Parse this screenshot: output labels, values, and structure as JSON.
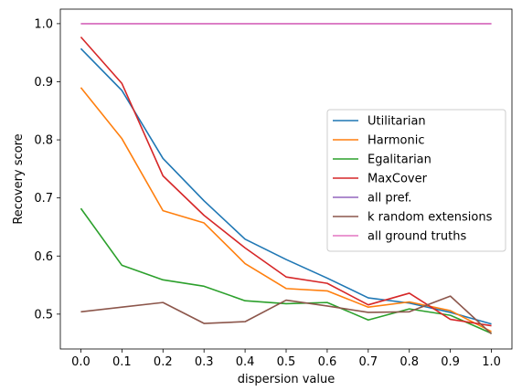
{
  "chart_data": {
    "type": "line",
    "xlabel": "dispersion value",
    "ylabel": "Recovery score",
    "xlim": [
      -0.05,
      1.05
    ],
    "ylim": [
      0.44,
      1.025
    ],
    "x": [
      0.0,
      0.1,
      0.2,
      0.3,
      0.4,
      0.5,
      0.6,
      0.7,
      0.8,
      0.9,
      1.0
    ],
    "x_tick_labels": [
      "0.0",
      "0.1",
      "0.2",
      "0.3",
      "0.4",
      "0.5",
      "0.6",
      "0.7",
      "0.8",
      "0.9",
      "1.0"
    ],
    "y_ticks": [
      0.5,
      0.6,
      0.7,
      0.8,
      0.9,
      1.0
    ],
    "y_tick_labels": [
      "0.5",
      "0.6",
      "0.7",
      "0.8",
      "0.9",
      "1.0"
    ],
    "grid": false,
    "legend_position": "center-right",
    "series": [
      {
        "name": "Utilitarian",
        "color": "#1f77b4",
        "values": [
          0.957,
          0.885,
          0.768,
          0.695,
          0.629,
          0.594,
          0.562,
          0.528,
          0.519,
          0.503,
          0.483
        ]
      },
      {
        "name": "Harmonic",
        "color": "#ff7f0e",
        "values": [
          0.89,
          0.802,
          0.678,
          0.657,
          0.587,
          0.544,
          0.54,
          0.512,
          0.521,
          0.506,
          0.47
        ]
      },
      {
        "name": "Egalitarian",
        "color": "#2ca02c",
        "values": [
          0.682,
          0.584,
          0.559,
          0.548,
          0.523,
          0.518,
          0.52,
          0.49,
          0.509,
          0.498,
          0.467
        ]
      },
      {
        "name": "MaxCover",
        "color": "#d62728",
        "values": [
          0.977,
          0.897,
          0.738,
          0.67,
          0.614,
          0.564,
          0.553,
          0.516,
          0.536,
          0.491,
          0.48
        ]
      },
      {
        "name": "all pref.",
        "color": "#9467bd",
        "values": [
          1.0,
          1.0,
          1.0,
          1.0,
          1.0,
          1.0,
          1.0,
          1.0,
          1.0,
          1.0,
          1.0
        ]
      },
      {
        "name": "k random extensions",
        "color": "#8c564b",
        "values": [
          0.504,
          0.512,
          0.52,
          0.484,
          0.487,
          0.524,
          0.514,
          0.503,
          0.504,
          0.531,
          0.466
        ]
      },
      {
        "name": "all ground truths",
        "color": "#e377c2",
        "values": [
          1.0,
          1.0,
          1.0,
          1.0,
          1.0,
          1.0,
          1.0,
          1.0,
          1.0,
          1.0,
          1.0
        ]
      }
    ]
  }
}
